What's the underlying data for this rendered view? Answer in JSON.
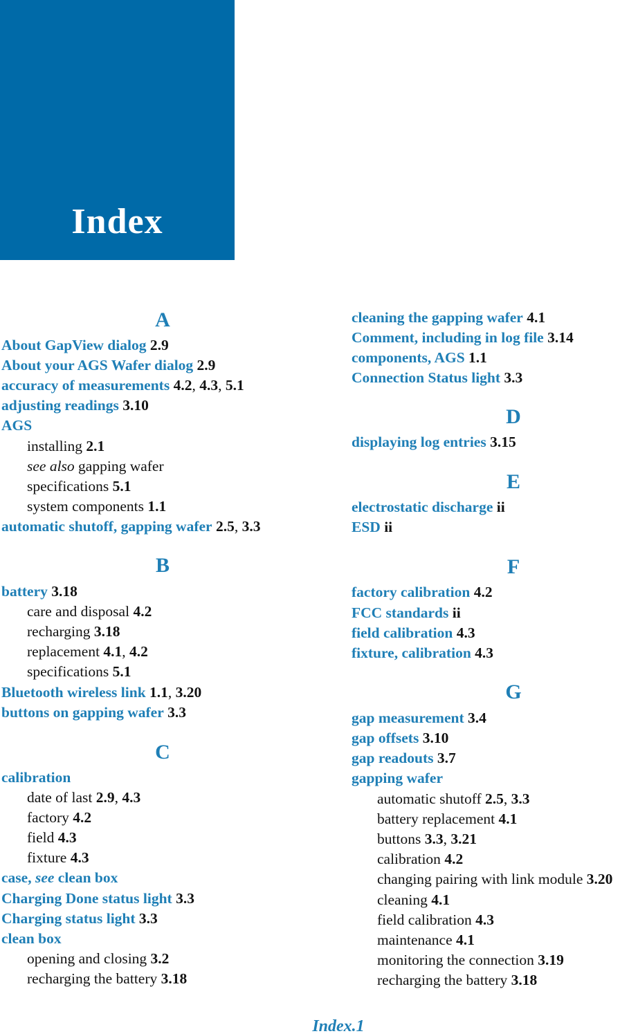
{
  "header": {
    "title": "Index"
  },
  "footer": {
    "page": "Index.1"
  },
  "left": {
    "letters": {
      "A": "A",
      "B": "B",
      "C": "C"
    },
    "rows": [
      {
        "term": "About GapView dialog",
        "pages": [
          "2.9"
        ]
      },
      {
        "term": "About your AGS Wafer dialog",
        "pages": [
          "2.9"
        ]
      },
      {
        "term": "accuracy of measurements",
        "pages": [
          "4.2",
          "4.3",
          "5.1"
        ]
      },
      {
        "term": "adjusting readings",
        "pages": [
          "3.10"
        ]
      },
      {
        "term": "AGS",
        "pages": []
      },
      {
        "sub": "installing",
        "pages": [
          "2.1"
        ]
      },
      {
        "see_also": "see also",
        "sub": "gapping wafer",
        "pages": []
      },
      {
        "sub": "specifications",
        "pages": [
          "5.1"
        ]
      },
      {
        "sub": "system components",
        "pages": [
          "1.1"
        ]
      },
      {
        "term": "automatic shutoff, gapping wafer",
        "pages": [
          "2.5",
          "3.3"
        ]
      },
      {
        "term": "battery",
        "pages": [
          "3.18"
        ]
      },
      {
        "sub": "care and disposal",
        "pages": [
          "4.2"
        ]
      },
      {
        "sub": "recharging",
        "pages": [
          "3.18"
        ]
      },
      {
        "sub": "replacement",
        "pages": [
          "4.1",
          "4.2"
        ]
      },
      {
        "sub": "specifications",
        "pages": [
          "5.1"
        ]
      },
      {
        "term": "Bluetooth wireless link",
        "pages": [
          "1.1",
          "3.20"
        ]
      },
      {
        "term": "buttons on gapping wafer",
        "pages": [
          "3.3"
        ]
      },
      {
        "term": "calibration",
        "pages": []
      },
      {
        "sub": "date of last",
        "pages": [
          "2.9",
          "4.3"
        ]
      },
      {
        "sub": "factory",
        "pages": [
          "4.2"
        ]
      },
      {
        "sub": "field",
        "pages": [
          "4.3"
        ]
      },
      {
        "sub": "fixture",
        "pages": [
          "4.3"
        ]
      },
      {
        "term": "case, ",
        "see": "see",
        "term2": " clean box",
        "pages": []
      },
      {
        "term": "Charging Done status light",
        "pages": [
          "3.3"
        ]
      },
      {
        "term": "Charging status light",
        "pages": [
          "3.3"
        ]
      },
      {
        "term": "clean box",
        "pages": []
      },
      {
        "sub": "opening and closing",
        "pages": [
          "3.2"
        ]
      },
      {
        "sub": "recharging the battery",
        "pages": [
          "3.18"
        ]
      }
    ]
  },
  "right": {
    "letters": {
      "D": "D",
      "E": "E",
      "F": "F",
      "G": "G"
    },
    "rows": [
      {
        "term": "cleaning the gapping wafer",
        "pages": [
          "4.1"
        ]
      },
      {
        "term": "Comment, including in log file",
        "pages": [
          "3.14"
        ]
      },
      {
        "term": "components, AGS",
        "pages": [
          "1.1"
        ]
      },
      {
        "term": "Connection Status light",
        "pages": [
          "3.3"
        ]
      },
      {
        "term": "displaying log entries",
        "pages": [
          "3.15"
        ]
      },
      {
        "term": "electrostatic discharge",
        "pages": [
          "ii"
        ]
      },
      {
        "term": "ESD",
        "pages": [
          "ii"
        ]
      },
      {
        "term": "factory calibration",
        "pages": [
          "4.2"
        ]
      },
      {
        "term": "FCC standards",
        "pages": [
          "ii"
        ]
      },
      {
        "term": "field calibration",
        "pages": [
          "4.3"
        ]
      },
      {
        "term": "fixture, calibration",
        "pages": [
          "4.3"
        ]
      },
      {
        "term": "gap measurement",
        "pages": [
          "3.4"
        ]
      },
      {
        "term": "gap offsets",
        "pages": [
          "3.10"
        ]
      },
      {
        "term": "gap readouts",
        "pages": [
          "3.7"
        ]
      },
      {
        "term": "gapping wafer",
        "pages": []
      },
      {
        "sub": "automatic shutoff",
        "pages": [
          "2.5",
          "3.3"
        ]
      },
      {
        "sub": "battery replacement",
        "pages": [
          "4.1"
        ]
      },
      {
        "sub": "buttons",
        "pages": [
          "3.3",
          "3.21"
        ]
      },
      {
        "sub": "calibration",
        "pages": [
          "4.2"
        ]
      },
      {
        "sub": "changing pairing with link module",
        "pages": [
          "3.20"
        ]
      },
      {
        "sub": "cleaning",
        "pages": [
          "4.1"
        ]
      },
      {
        "sub": "field calibration",
        "pages": [
          "4.3"
        ]
      },
      {
        "sub": "maintenance",
        "pages": [
          "4.1"
        ]
      },
      {
        "sub": "monitoring the connection",
        "pages": [
          "3.19"
        ]
      },
      {
        "sub": "recharging the battery",
        "pages": [
          "3.18"
        ]
      }
    ]
  }
}
